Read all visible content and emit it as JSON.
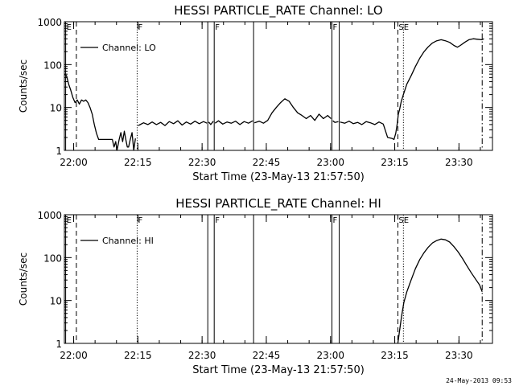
{
  "chart_data": [
    {
      "type": "line",
      "title": "HESSI PARTICLE_RATE Channel: LO",
      "xlabel": "Start Time (23-May-13 21:57:50)",
      "ylabel": "Counts/sec",
      "x_unit": "minutes since 21:57:50",
      "xlim": [
        0,
        100
      ],
      "ylim": [
        1,
        1000
      ],
      "yscale": "log",
      "x_ticks": [
        {
          "v": 2.17,
          "label": "22:00"
        },
        {
          "v": 17.17,
          "label": "22:15"
        },
        {
          "v": 32.17,
          "label": "22:30"
        },
        {
          "v": 47.17,
          "label": "22:45"
        },
        {
          "v": 62.17,
          "label": "23:00"
        },
        {
          "v": 77.17,
          "label": "23:15"
        },
        {
          "v": 92.17,
          "label": "23:30"
        }
      ],
      "y_ticks": [
        {
          "v": 1,
          "label": "1"
        },
        {
          "v": 10,
          "label": "10"
        },
        {
          "v": 100,
          "label": "100"
        },
        {
          "v": 1000,
          "label": "1000"
        }
      ],
      "legend": {
        "label": "Channel: LO",
        "position": "top-left"
      },
      "markers": [
        {
          "x": 0.3,
          "style": "solid",
          "label": "E"
        },
        {
          "x": 2.8,
          "style": "dashed",
          "label": ""
        },
        {
          "x": 17.0,
          "style": "dotted",
          "label": "F"
        },
        {
          "x": 33.5,
          "style": "solid",
          "label": ""
        },
        {
          "x": 35.0,
          "style": "solid",
          "label": "F"
        },
        {
          "x": 44.2,
          "style": "solid",
          "label": ""
        },
        {
          "x": 62.5,
          "style": "solid",
          "label": "F"
        },
        {
          "x": 64.2,
          "style": "solid",
          "label": ""
        },
        {
          "x": 77.9,
          "style": "dashed",
          "label": "SE"
        },
        {
          "x": 79.2,
          "style": "dotted",
          "label": ""
        },
        {
          "x": 97.6,
          "style": "dashdot",
          "label": ""
        }
      ],
      "series": [
        {
          "name": "Channel: LO",
          "segments": [
            [
              [
                0.0,
                60
              ],
              [
                0.5,
                55
              ],
              [
                1.0,
                35
              ],
              [
                1.5,
                25
              ],
              [
                2.0,
                17
              ],
              [
                2.5,
                13
              ],
              [
                3.0,
                15
              ],
              [
                3.5,
                12
              ],
              [
                4.0,
                15
              ],
              [
                4.5,
                14
              ],
              [
                5.0,
                15
              ],
              [
                5.5,
                13
              ],
              [
                6.0,
                10
              ],
              [
                6.5,
                7
              ],
              [
                7.0,
                4
              ],
              [
                7.5,
                2.5
              ],
              [
                8.0,
                1.8
              ],
              [
                8.8,
                1.8
              ],
              [
                9.5,
                1.8
              ],
              [
                10.5,
                1.8
              ],
              [
                11.2,
                1.8
              ],
              [
                11.6,
                1.2
              ],
              [
                12.0,
                1.6
              ],
              [
                12.3,
                1.0
              ],
              [
                12.8,
                1.8
              ],
              [
                13.2,
                2.6
              ],
              [
                13.6,
                1.6
              ],
              [
                14.0,
                2.8
              ],
              [
                14.4,
                1.7
              ],
              [
                14.7,
                1.2
              ],
              [
                15.0,
                1.2
              ],
              [
                15.4,
                1.8
              ],
              [
                15.8,
                2.6
              ],
              [
                16.2,
                1.0
              ],
              [
                16.6,
                1.9
              ]
            ],
            [
              [
                17.2,
                3.8
              ],
              [
                17.5,
                3.9
              ],
              [
                18.5,
                4.4
              ],
              [
                19.5,
                4.0
              ],
              [
                20.5,
                4.6
              ],
              [
                21.5,
                4.0
              ],
              [
                22.5,
                4.5
              ],
              [
                23.5,
                3.8
              ],
              [
                24.5,
                4.7
              ],
              [
                25.5,
                4.2
              ],
              [
                26.5,
                4.9
              ],
              [
                27.5,
                3.9
              ],
              [
                28.5,
                4.6
              ],
              [
                29.5,
                4.1
              ],
              [
                30.5,
                4.8
              ],
              [
                31.5,
                4.2
              ],
              [
                32.5,
                4.7
              ],
              [
                33.3,
                4.3
              ]
            ],
            [
              [
                33.7,
                4.6
              ],
              [
                34.2,
                4.0
              ],
              [
                34.8,
                4.8
              ]
            ],
            [
              [
                35.2,
                4.3
              ],
              [
                36.0,
                4.9
              ],
              [
                37.0,
                4.1
              ],
              [
                38.0,
                4.6
              ],
              [
                39.0,
                4.3
              ],
              [
                40.0,
                4.8
              ],
              [
                41.0,
                4.0
              ],
              [
                42.0,
                4.7
              ],
              [
                43.0,
                4.3
              ],
              [
                44.0,
                4.9
              ]
            ],
            [
              [
                44.4,
                4.4
              ],
              [
                45.5,
                4.8
              ],
              [
                46.5,
                4.3
              ],
              [
                47.5,
                5.0
              ],
              [
                48.5,
                7.5
              ],
              [
                49.5,
                10.0
              ],
              [
                50.5,
                13
              ],
              [
                51.5,
                16
              ],
              [
                52.5,
                14
              ],
              [
                53.5,
                10
              ],
              [
                54.5,
                7.5
              ],
              [
                55.5,
                6.5
              ],
              [
                56.5,
                5.5
              ],
              [
                57.5,
                6.5
              ],
              [
                58.5,
                5.0
              ],
              [
                59.5,
                7.0
              ],
              [
                60.5,
                5.5
              ],
              [
                61.5,
                6.5
              ],
              [
                62.3,
                5.5
              ]
            ],
            [
              [
                62.7,
                4.9
              ],
              [
                63.2,
                4.5
              ],
              [
                64.0,
                4.7
              ]
            ],
            [
              [
                64.4,
                4.6
              ],
              [
                65.5,
                4.3
              ],
              [
                66.5,
                4.8
              ],
              [
                67.5,
                4.2
              ],
              [
                68.5,
                4.5
              ],
              [
                69.5,
                4.0
              ],
              [
                70.5,
                4.7
              ],
              [
                71.5,
                4.4
              ],
              [
                72.5,
                4.0
              ],
              [
                73.5,
                4.6
              ],
              [
                74.5,
                4.1
              ],
              [
                75.5,
                2.0
              ],
              [
                76.5,
                1.9
              ],
              [
                77.0,
                1.8
              ],
              [
                77.4,
                2.5
              ],
              [
                77.8,
                4.5
              ],
              [
                78.0,
                7
              ],
              [
                78.3,
                9
              ],
              [
                78.7,
                14
              ],
              [
                79.2,
                20
              ],
              [
                80.0,
                35
              ],
              [
                81.0,
                55
              ],
              [
                82.0,
                90
              ],
              [
                83.0,
                140
              ],
              [
                84.0,
                200
              ],
              [
                85.0,
                260
              ],
              [
                86.0,
                320
              ],
              [
                87.0,
                360
              ],
              [
                88.0,
                380
              ],
              [
                89.0,
                360
              ],
              [
                90.0,
                330
              ],
              [
                91.0,
                280
              ],
              [
                91.8,
                255
              ],
              [
                92.5,
                280
              ],
              [
                93.5,
                330
              ],
              [
                94.5,
                380
              ],
              [
                95.5,
                400
              ],
              [
                96.5,
                390
              ],
              [
                97.5,
                380
              ],
              [
                98.0,
                400
              ]
            ]
          ]
        }
      ]
    },
    {
      "type": "line",
      "title": "HESSI PARTICLE_RATE Channel: HI",
      "xlabel": "Start Time (23-May-13 21:57:50)",
      "ylabel": "Counts/sec",
      "x_unit": "minutes since 21:57:50",
      "xlim": [
        0,
        100
      ],
      "ylim": [
        1,
        1000
      ],
      "yscale": "log",
      "x_ticks": [
        {
          "v": 2.17,
          "label": "22:00"
        },
        {
          "v": 17.17,
          "label": "22:15"
        },
        {
          "v": 32.17,
          "label": "22:30"
        },
        {
          "v": 47.17,
          "label": "22:45"
        },
        {
          "v": 62.17,
          "label": "23:00"
        },
        {
          "v": 77.17,
          "label": "23:15"
        },
        {
          "v": 92.17,
          "label": "23:30"
        }
      ],
      "y_ticks": [
        {
          "v": 1,
          "label": "1"
        },
        {
          "v": 10,
          "label": "10"
        },
        {
          "v": 100,
          "label": "100"
        },
        {
          "v": 1000,
          "label": "1000"
        }
      ],
      "legend": {
        "label": "Channel: HI",
        "position": "top-left"
      },
      "markers": [
        {
          "x": 0.3,
          "style": "solid",
          "label": "E"
        },
        {
          "x": 2.8,
          "style": "dashed",
          "label": ""
        },
        {
          "x": 17.0,
          "style": "dotted",
          "label": "F"
        },
        {
          "x": 33.5,
          "style": "solid",
          "label": ""
        },
        {
          "x": 35.0,
          "style": "solid",
          "label": "F"
        },
        {
          "x": 44.2,
          "style": "solid",
          "label": ""
        },
        {
          "x": 62.5,
          "style": "solid",
          "label": "F"
        },
        {
          "x": 64.2,
          "style": "solid",
          "label": ""
        },
        {
          "x": 77.9,
          "style": "dashed",
          "label": "SE"
        },
        {
          "x": 79.2,
          "style": "dotted",
          "label": ""
        },
        {
          "x": 97.6,
          "style": "dashdot",
          "label": ""
        }
      ],
      "series": [
        {
          "name": "Channel: HI",
          "segments": [
            [
              [
                77.9,
                1.0
              ],
              [
                78.3,
                2.0
              ],
              [
                78.8,
                4.5
              ],
              [
                79.3,
                9
              ],
              [
                80.0,
                16
              ],
              [
                81.0,
                30
              ],
              [
                82.0,
                55
              ],
              [
                83.0,
                90
              ],
              [
                84.0,
                130
              ],
              [
                85.0,
                175
              ],
              [
                86.0,
                220
              ],
              [
                87.0,
                250
              ],
              [
                88.0,
                270
              ],
              [
                89.0,
                260
              ],
              [
                90.0,
                230
              ],
              [
                91.0,
                180
              ],
              [
                92.0,
                135
              ],
              [
                93.0,
                95
              ],
              [
                94.0,
                65
              ],
              [
                95.0,
                45
              ],
              [
                96.0,
                32
              ],
              [
                97.0,
                23
              ],
              [
                97.6,
                16
              ]
            ]
          ]
        }
      ]
    }
  ],
  "footer": {
    "stamp": "24-May-2013 09:53"
  }
}
